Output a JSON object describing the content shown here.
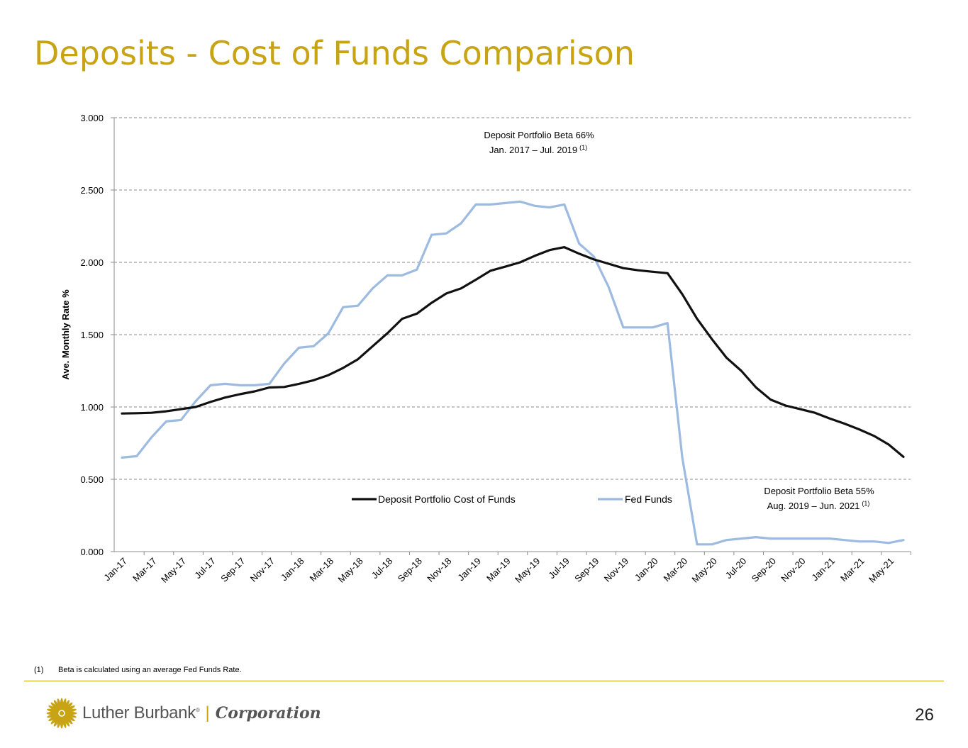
{
  "page": {
    "title": "Deposits - Cost of Funds Comparison",
    "page_number": "26",
    "footnote_marker": "(1)",
    "footnote_text": "Beta is calculated using an average Fed Funds Rate."
  },
  "brand": {
    "name": "Luther Burbank",
    "reg_mark": "®",
    "separator": "|",
    "corp": "Corporation",
    "gold": "#c8a415",
    "gray": "#555555"
  },
  "chart_data": {
    "type": "line",
    "title": "",
    "xlabel": "",
    "ylabel": "Ave. Monthly Rate %",
    "ylim": [
      0,
      3
    ],
    "yticks": [
      "0.000",
      "0.500",
      "1.000",
      "1.500",
      "2.000",
      "2.500",
      "3.000"
    ],
    "grid": true,
    "tick_labels": [
      "Jan-17",
      "Mar-17",
      "May-17",
      "Jul-17",
      "Sep-17",
      "Nov-17",
      "Jan-18",
      "Mar-18",
      "May-18",
      "Jul-18",
      "Sep-18",
      "Nov-18",
      "Jan-19",
      "Mar-19",
      "May-19",
      "Jul-19",
      "Sep-19",
      "Nov-19",
      "Jan-20",
      "Mar-20",
      "May-20",
      "Jul-20",
      "Sep-20",
      "Nov-20",
      "Jan-21",
      "Mar-21",
      "May-21"
    ],
    "months": 54,
    "series": [
      {
        "name": "Deposit Portfolio Cost of Funds",
        "color": "#111111",
        "values": [
          0.955,
          0.957,
          0.96,
          0.97,
          0.985,
          1.0,
          1.035,
          1.065,
          1.088,
          1.108,
          1.135,
          1.138,
          1.16,
          1.185,
          1.22,
          1.27,
          1.33,
          1.42,
          1.51,
          1.61,
          1.645,
          1.72,
          1.785,
          1.82,
          1.88,
          1.942,
          1.97,
          2.0,
          2.045,
          2.085,
          2.105,
          2.06,
          2.02,
          1.99,
          1.96,
          1.945,
          1.935,
          1.925,
          1.78,
          1.61,
          1.47,
          1.34,
          1.25,
          1.135,
          1.05,
          1.01,
          0.985,
          0.96,
          0.92,
          0.885,
          0.845,
          0.8,
          0.74,
          0.655
        ]
      },
      {
        "name": "Fed Funds",
        "color": "#9dbbe1",
        "values": [
          0.65,
          0.66,
          0.79,
          0.9,
          0.91,
          1.04,
          1.15,
          1.16,
          1.15,
          1.15,
          1.16,
          1.3,
          1.41,
          1.42,
          1.51,
          1.69,
          1.7,
          1.82,
          1.91,
          1.91,
          1.95,
          2.19,
          2.2,
          2.27,
          2.4,
          2.4,
          2.41,
          2.42,
          2.39,
          2.38,
          2.4,
          2.13,
          2.04,
          1.83,
          1.55,
          1.55,
          1.55,
          1.58,
          0.65,
          0.05,
          0.05,
          0.08,
          0.09,
          0.1,
          0.09,
          0.09,
          0.09,
          0.09,
          0.09,
          0.08,
          0.07,
          0.07,
          0.06,
          0.08
        ]
      }
    ],
    "annotations": [
      {
        "line1": "Deposit Portfolio Beta 66%",
        "line2": "Jan. 2017 – Jul. 2019",
        "sup": "(1)"
      },
      {
        "line1": "Deposit Portfolio Beta 55%",
        "line2": "Aug. 2019 – Jun. 2021",
        "sup": "(1)"
      }
    ],
    "legend": "bottom-center"
  }
}
